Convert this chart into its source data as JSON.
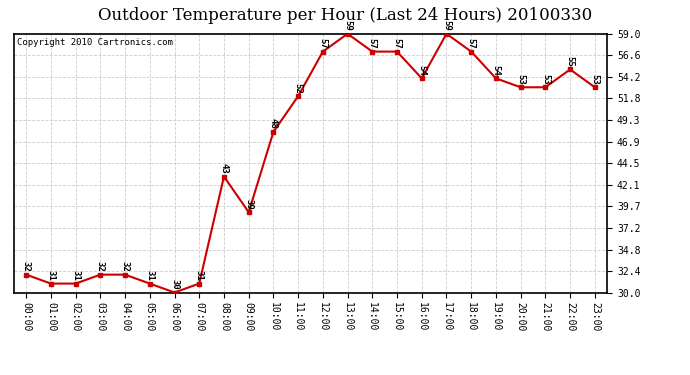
{
  "title": "Outdoor Temperature per Hour (Last 24 Hours) 20100330",
  "copyright": "Copyright 2010 Cartronics.com",
  "hours": [
    "00:00",
    "01:00",
    "02:00",
    "03:00",
    "04:00",
    "05:00",
    "06:00",
    "07:00",
    "08:00",
    "09:00",
    "10:00",
    "11:00",
    "12:00",
    "13:00",
    "14:00",
    "15:00",
    "16:00",
    "17:00",
    "18:00",
    "19:00",
    "20:00",
    "21:00",
    "22:00",
    "23:00"
  ],
  "temps": [
    32,
    31,
    31,
    32,
    32,
    31,
    30,
    31,
    43,
    39,
    48,
    52,
    57,
    59,
    57,
    57,
    54,
    59,
    57,
    54,
    53,
    53,
    55,
    53
  ],
  "line_color": "#cc0000",
  "marker_color": "#cc0000",
  "bg_color": "#ffffff",
  "grid_color": "#cccccc",
  "ylim_min": 30.0,
  "ylim_max": 59.0,
  "yticks": [
    30.0,
    32.4,
    34.8,
    37.2,
    39.7,
    42.1,
    44.5,
    46.9,
    49.3,
    51.8,
    54.2,
    56.6,
    59.0
  ],
  "title_fontsize": 12,
  "copyright_fontsize": 6.5,
  "label_fontsize": 6.5,
  "tick_fontsize": 7
}
